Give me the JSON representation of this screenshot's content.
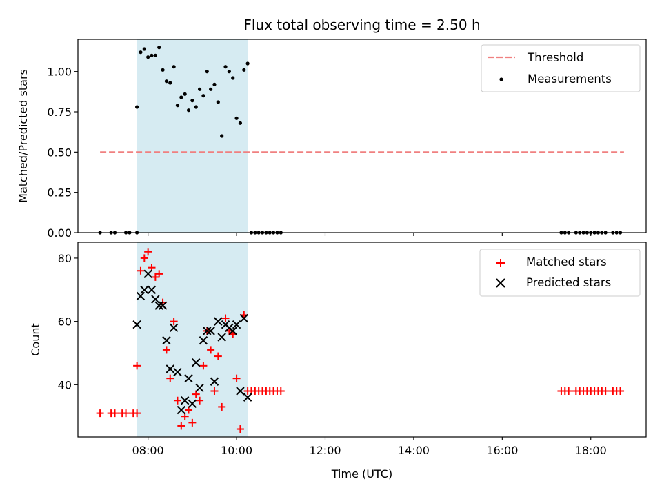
{
  "chart_data": [
    {
      "type": "scatter",
      "title": "Flux total observing time = 2.50 h",
      "ylabel": "Matched/Predicted stars",
      "xlabel": "",
      "xlim": [
        "06:25",
        "19:15"
      ],
      "ylim": [
        0,
        1.2
      ],
      "y_ticks": [
        "0.00",
        "0.25",
        "0.50",
        "0.75",
        "1.00"
      ],
      "legend_position": "top-right",
      "highlight_span": [
        "07:45",
        "10:15"
      ],
      "highlight_color": "#add8e6",
      "threshold": {
        "name": "Threshold",
        "value": 0.5,
        "x_range": [
          "06:55",
          "18:45"
        ],
        "color": "#f08080"
      },
      "series": [
        {
          "name": "Measurements",
          "color": "#000000",
          "marker": "dot",
          "points": [
            [
              "06:55",
              0
            ],
            [
              "07:10",
              0
            ],
            [
              "07:15",
              0
            ],
            [
              "07:30",
              0
            ],
            [
              "07:35",
              0
            ],
            [
              "07:45",
              0
            ],
            [
              "07:45",
              0.78
            ],
            [
              "07:50",
              1.12
            ],
            [
              "07:55",
              1.14
            ],
            [
              "08:00",
              1.09
            ],
            [
              "08:05",
              1.1
            ],
            [
              "08:10",
              1.1
            ],
            [
              "08:15",
              1.15
            ],
            [
              "08:20",
              1.01
            ],
            [
              "08:25",
              0.94
            ],
            [
              "08:30",
              0.93
            ],
            [
              "08:35",
              1.03
            ],
            [
              "08:40",
              0.79
            ],
            [
              "08:45",
              0.84
            ],
            [
              "08:50",
              0.86
            ],
            [
              "08:55",
              0.76
            ],
            [
              "09:00",
              0.82
            ],
            [
              "09:05",
              0.78
            ],
            [
              "09:10",
              0.89
            ],
            [
              "09:15",
              0.85
            ],
            [
              "09:20",
              1.0
            ],
            [
              "09:25",
              0.89
            ],
            [
              "09:30",
              0.92
            ],
            [
              "09:35",
              0.81
            ],
            [
              "09:40",
              0.6
            ],
            [
              "09:45",
              1.03
            ],
            [
              "09:50",
              1.0
            ],
            [
              "09:55",
              0.96
            ],
            [
              "10:00",
              0.71
            ],
            [
              "10:05",
              0.68
            ],
            [
              "10:10",
              1.01
            ],
            [
              "10:15",
              1.05
            ],
            [
              "10:20",
              0
            ],
            [
              "10:25",
              0
            ],
            [
              "10:30",
              0
            ],
            [
              "10:35",
              0
            ],
            [
              "10:40",
              0
            ],
            [
              "10:45",
              0
            ],
            [
              "10:50",
              0
            ],
            [
              "10:55",
              0
            ],
            [
              "11:00",
              0
            ],
            [
              "17:20",
              0
            ],
            [
              "17:25",
              0
            ],
            [
              "17:30",
              0
            ],
            [
              "17:40",
              0
            ],
            [
              "17:45",
              0
            ],
            [
              "17:50",
              0
            ],
            [
              "17:55",
              0
            ],
            [
              "18:00",
              0
            ],
            [
              "18:05",
              0
            ],
            [
              "18:10",
              0
            ],
            [
              "18:15",
              0
            ],
            [
              "18:20",
              0
            ],
            [
              "18:30",
              0
            ],
            [
              "18:35",
              0
            ],
            [
              "18:40",
              0
            ]
          ]
        }
      ]
    },
    {
      "type": "scatter",
      "title": "",
      "ylabel": "Count",
      "xlabel": "Time (UTC)",
      "xlim": [
        "06:25",
        "19:15"
      ],
      "ylim": [
        23.5,
        85
      ],
      "y_ticks": [
        "40",
        "60",
        "80"
      ],
      "x_ticks": [
        "08:00",
        "10:00",
        "12:00",
        "14:00",
        "16:00",
        "18:00"
      ],
      "legend_position": "top-right",
      "highlight_span": [
        "07:45",
        "10:15"
      ],
      "highlight_color": "#add8e6",
      "series": [
        {
          "name": "Matched stars",
          "color": "#ff0000",
          "marker": "plus",
          "points": [
            [
              "06:55",
              31
            ],
            [
              "07:10",
              31
            ],
            [
              "07:15",
              31
            ],
            [
              "07:25",
              31
            ],
            [
              "07:30",
              31
            ],
            [
              "07:40",
              31
            ],
            [
              "07:45",
              31
            ],
            [
              "07:45",
              46
            ],
            [
              "07:50",
              76
            ],
            [
              "07:55",
              80
            ],
            [
              "08:00",
              82
            ],
            [
              "08:05",
              77
            ],
            [
              "08:10",
              74
            ],
            [
              "08:15",
              75
            ],
            [
              "08:20",
              66
            ],
            [
              "08:25",
              51
            ],
            [
              "08:30",
              42
            ],
            [
              "08:35",
              60
            ],
            [
              "08:40",
              35
            ],
            [
              "08:45",
              27
            ],
            [
              "08:50",
              30
            ],
            [
              "08:55",
              32
            ],
            [
              "09:00",
              28
            ],
            [
              "09:05",
              37
            ],
            [
              "09:10",
              35
            ],
            [
              "09:15",
              46
            ],
            [
              "09:20",
              57
            ],
            [
              "09:25",
              51
            ],
            [
              "09:30",
              38
            ],
            [
              "09:35",
              49
            ],
            [
              "09:40",
              33
            ],
            [
              "09:45",
              61
            ],
            [
              "09:50",
              57
            ],
            [
              "09:55",
              56
            ],
            [
              "10:00",
              42
            ],
            [
              "10:05",
              26
            ],
            [
              "10:10",
              62
            ],
            [
              "10:15",
              38
            ],
            [
              "10:20",
              38
            ],
            [
              "10:25",
              38
            ],
            [
              "10:30",
              38
            ],
            [
              "10:35",
              38
            ],
            [
              "10:40",
              38
            ],
            [
              "10:45",
              38
            ],
            [
              "10:50",
              38
            ],
            [
              "10:55",
              38
            ],
            [
              "11:00",
              38
            ],
            [
              "17:20",
              38
            ],
            [
              "17:25",
              38
            ],
            [
              "17:30",
              38
            ],
            [
              "17:40",
              38
            ],
            [
              "17:45",
              38
            ],
            [
              "17:50",
              38
            ],
            [
              "17:55",
              38
            ],
            [
              "18:00",
              38
            ],
            [
              "18:05",
              38
            ],
            [
              "18:10",
              38
            ],
            [
              "18:15",
              38
            ],
            [
              "18:20",
              38
            ],
            [
              "18:30",
              38
            ],
            [
              "18:35",
              38
            ],
            [
              "18:40",
              38
            ]
          ]
        },
        {
          "name": "Predicted stars",
          "color": "#000000",
          "marker": "x",
          "points": [
            [
              "07:45",
              59
            ],
            [
              "07:50",
              68
            ],
            [
              "07:55",
              70
            ],
            [
              "08:00",
              75
            ],
            [
              "08:05",
              70
            ],
            [
              "08:10",
              67
            ],
            [
              "08:15",
              65
            ],
            [
              "08:20",
              65
            ],
            [
              "08:25",
              54
            ],
            [
              "08:30",
              45
            ],
            [
              "08:35",
              58
            ],
            [
              "08:40",
              44
            ],
            [
              "08:45",
              32
            ],
            [
              "08:50",
              35
            ],
            [
              "08:55",
              42
            ],
            [
              "09:00",
              34
            ],
            [
              "09:05",
              47
            ],
            [
              "09:10",
              39
            ],
            [
              "09:15",
              54
            ],
            [
              "09:20",
              57
            ],
            [
              "09:25",
              57
            ],
            [
              "09:30",
              41
            ],
            [
              "09:35",
              60
            ],
            [
              "09:40",
              55
            ],
            [
              "09:45",
              59
            ],
            [
              "09:50",
              58
            ],
            [
              "09:55",
              57
            ],
            [
              "10:00",
              59
            ],
            [
              "10:05",
              38
            ],
            [
              "10:10",
              61
            ],
            [
              "10:15",
              36
            ]
          ]
        }
      ]
    }
  ]
}
